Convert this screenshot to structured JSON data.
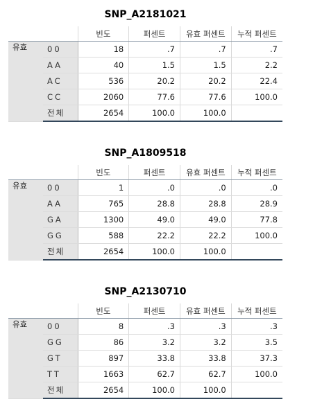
{
  "headers": {
    "group": "유효",
    "cols": [
      "빈도",
      "퍼센트",
      "유효 퍼센트",
      "누적 퍼센트"
    ]
  },
  "tables": [
    {
      "title": "SNP_A2181021",
      "rows": [
        [
          "00",
          "18",
          ".7",
          ".7",
          ".7"
        ],
        [
          "AA",
          "40",
          "1.5",
          "1.5",
          "2.2"
        ],
        [
          "AC",
          "536",
          "20.2",
          "20.2",
          "22.4"
        ],
        [
          "CC",
          "2060",
          "77.6",
          "77.6",
          "100.0"
        ],
        [
          "전체",
          "2654",
          "100.0",
          "100.0",
          ""
        ]
      ]
    },
    {
      "title": "SNP_A1809518",
      "rows": [
        [
          "00",
          "1",
          ".0",
          ".0",
          ".0"
        ],
        [
          "AA",
          "765",
          "28.8",
          "28.8",
          "28.9"
        ],
        [
          "GA",
          "1300",
          "49.0",
          "49.0",
          "77.8"
        ],
        [
          "GG",
          "588",
          "22.2",
          "22.2",
          "100.0"
        ],
        [
          "전체",
          "2654",
          "100.0",
          "100.0",
          ""
        ]
      ]
    },
    {
      "title": "SNP_A2130710",
      "rows": [
        [
          "00",
          "8",
          ".3",
          ".3",
          ".3"
        ],
        [
          "GG",
          "86",
          "3.2",
          "3.2",
          "3.5"
        ],
        [
          "GT",
          "897",
          "33.8",
          "33.8",
          "37.3"
        ],
        [
          "TT",
          "1663",
          "62.7",
          "62.7",
          "100.0"
        ],
        [
          "전체",
          "2654",
          "100.0",
          "100.0",
          ""
        ]
      ]
    }
  ]
}
